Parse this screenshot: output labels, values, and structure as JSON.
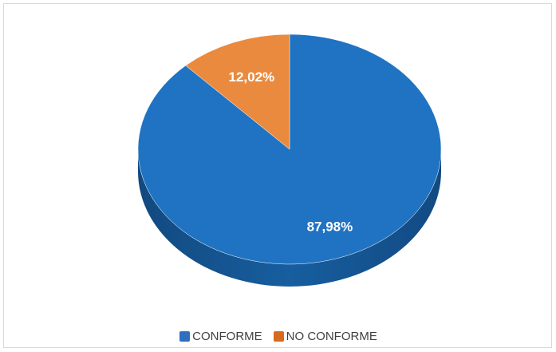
{
  "chart_data": {
    "type": "pie",
    "title": "",
    "slices": [
      {
        "label": "CONFORME",
        "value": 87.98,
        "display": "87,98%",
        "color": "#1f73c2"
      },
      {
        "label": "NO CONFORME",
        "value": 12.02,
        "display": "12,02%",
        "color": "#ea8a3e"
      }
    ],
    "legend_position": "bottom",
    "style": "3d"
  },
  "legend": {
    "items": [
      {
        "label": "CONFORME",
        "color": "#2f6fbf"
      },
      {
        "label": "NO CONFORME",
        "color": "#d86a1f"
      }
    ]
  }
}
